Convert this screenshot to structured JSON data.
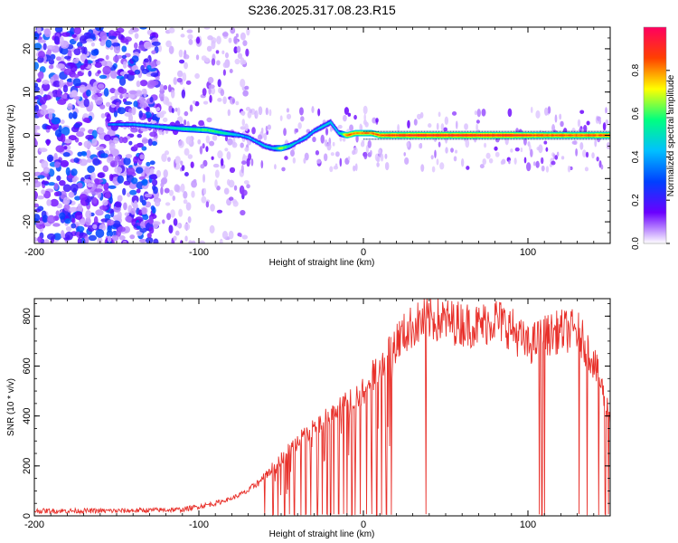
{
  "figure_title": "S236.2025.317.08.23.R15",
  "chart_data": [
    {
      "type": "heatmap",
      "title": "",
      "xlabel": "Height of straight line (km)",
      "ylabel": "Frequency (Hz)",
      "xlim": [
        -200,
        150
      ],
      "ylim": [
        -25,
        25
      ],
      "xticks": [
        -200,
        -100,
        0,
        100
      ],
      "xtick_labels": [
        "-200",
        "-100",
        "0",
        "100"
      ],
      "yticks": [
        -20,
        -10,
        0,
        10,
        20
      ],
      "ytick_labels": [
        "-20",
        "-10",
        "0",
        "10",
        "20"
      ],
      "colorbar": {
        "label": "Normalized spectral amplitude",
        "range": [
          0,
          1
        ],
        "ticks": [
          0.0,
          0.2,
          0.4,
          0.6,
          0.8
        ],
        "tick_labels": [
          "0.0",
          "0.2",
          "0.4",
          "0.6",
          "0.8"
        ],
        "colormap": [
          "#ffffff",
          "#6a00ff",
          "#0040ff",
          "#00c0ff",
          "#00ff80",
          "#ffff00",
          "#ff4000",
          "#ff0060"
        ]
      },
      "ridge": {
        "x": [
          -155,
          -140,
          -125,
          -110,
          -95,
          -85,
          -75,
          -70,
          -65,
          -60,
          -55,
          -50,
          -45,
          -40,
          -35,
          -30,
          -25,
          -20,
          -15,
          -10,
          -5,
          0,
          5,
          10,
          30,
          60,
          90,
          110,
          130,
          150
        ],
        "frequency": [
          2.5,
          2.5,
          2,
          1.5,
          1.2,
          0.5,
          0,
          -0.5,
          -1.5,
          -2.5,
          -3,
          -3,
          -2.5,
          -1.5,
          -0.5,
          1,
          2,
          3,
          0.5,
          0,
          0.5,
          0.5,
          0.5,
          0,
          0,
          0,
          0,
          0,
          0,
          0
        ],
        "amplitude": [
          0.35,
          0.4,
          0.45,
          0.55,
          0.6,
          0.55,
          0.4,
          0.4,
          0.4,
          0.45,
          0.45,
          0.7,
          0.5,
          0.4,
          0.45,
          0.4,
          0.45,
          0.45,
          0.45,
          0.85,
          0.8,
          0.8,
          0.8,
          0.85,
          0.9,
          0.9,
          0.9,
          0.85,
          0.85,
          0.85
        ]
      },
      "noise": {
        "x_start": -200,
        "x_dense_end": -125,
        "x_sparse_end": -70,
        "amplitude_max": 0.3
      }
    },
    {
      "type": "line",
      "title": "",
      "xlabel": "Height of straight line (km)",
      "ylabel": "SNR (10 * v/v)",
      "xlim": [
        -200,
        150
      ],
      "ylim": [
        0,
        870
      ],
      "xticks": [
        -200,
        -100,
        0,
        100
      ],
      "xtick_labels": [
        "-200",
        "-100",
        "0",
        "100"
      ],
      "yticks": [
        0,
        200,
        400,
        600,
        800
      ],
      "ytick_labels": [
        "0",
        "200",
        "400",
        "600",
        "800"
      ],
      "line_color": "#e8302a",
      "envelope": {
        "x": [
          -200,
          -150,
          -110,
          -90,
          -80,
          -70,
          -60,
          -50,
          -40,
          -30,
          -20,
          -10,
          0,
          10,
          20,
          30,
          40,
          50,
          60,
          70,
          80,
          90,
          100,
          110,
          120,
          130,
          140,
          150
        ],
        "snr": [
          20,
          20,
          25,
          50,
          70,
          100,
          160,
          230,
          300,
          350,
          400,
          450,
          500,
          600,
          700,
          760,
          790,
          780,
          770,
          760,
          790,
          750,
          680,
          720,
          740,
          740,
          620,
          400
        ]
      },
      "dropouts_x": [
        -60,
        -55,
        -52,
        -48,
        -45,
        -42,
        -38,
        -35,
        -32,
        -28,
        -25,
        -22,
        -20,
        -18,
        -15,
        -12,
        -10,
        -7,
        -5,
        -2,
        2,
        5,
        8,
        11,
        14,
        17,
        38,
        107,
        108.5,
        110,
        131,
        136,
        143,
        147,
        149
      ]
    }
  ]
}
